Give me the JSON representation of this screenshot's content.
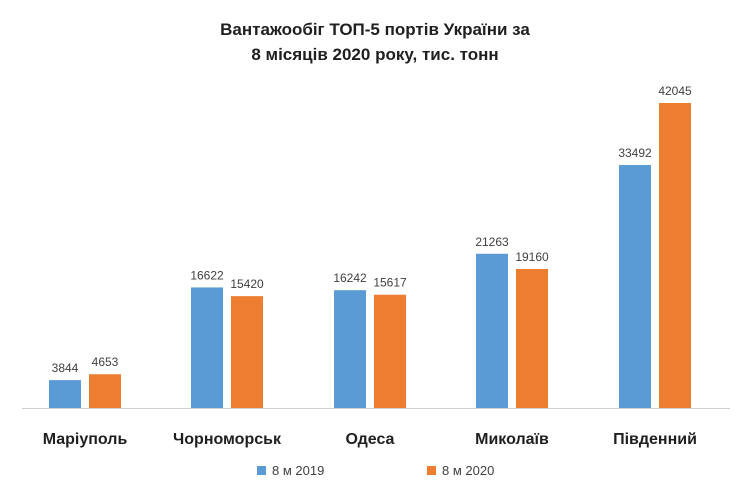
{
  "chart_data": {
    "type": "bar",
    "title_lines": [
      "Вантажообіг ТОП-5 портів України за",
      "8 місяців 2020 року, тис. тонн"
    ],
    "categories": [
      "Маріуполь",
      "Чорноморськ",
      "Одеса",
      "Миколаїв",
      "Південний"
    ],
    "series": [
      {
        "name": "8 м 2019",
        "color": "#5b9bd5",
        "values": [
          3844,
          16622,
          16242,
          21263,
          33492
        ]
      },
      {
        "name": "8 м 2020",
        "color": "#ed7d31",
        "values": [
          4653,
          15420,
          15617,
          19160,
          42045
        ]
      }
    ],
    "ylim": [
      0,
      45000
    ],
    "grid": false,
    "legend": "bottom"
  }
}
